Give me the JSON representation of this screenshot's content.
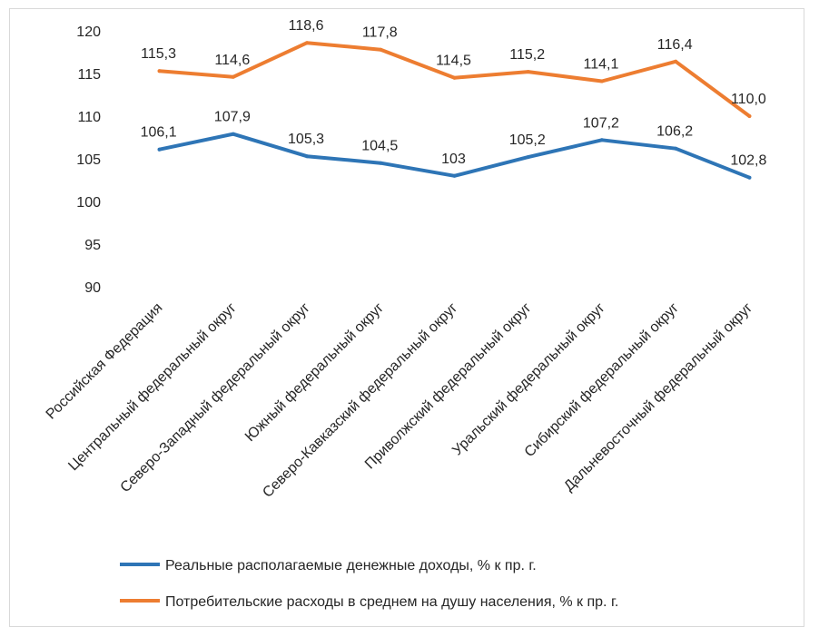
{
  "chart_data": {
    "type": "line",
    "title": "",
    "xlabel": "",
    "ylabel": "",
    "ylim": [
      90,
      120
    ],
    "yticks": [
      90,
      95,
      100,
      105,
      110,
      115,
      120
    ],
    "grid": "none",
    "legend_position": "bottom",
    "categories": [
      "Российская Федерация",
      "Центральный федеральный округ",
      "Северо-Западный федеральный округ",
      "Южный федеральный округ",
      "Северо-Кавказский федеральный округ",
      "Приволжский федеральный округ",
      "Уральский федеральный округ",
      "Сибирский федеральный округ",
      "Дальневосточный федеральный округ"
    ],
    "series": [
      {
        "name": "Реальные располагаемые денежные доходы, % к пр. г.",
        "color": "#2e75b6",
        "values": [
          106.1,
          107.9,
          105.3,
          104.5,
          103,
          105.2,
          107.2,
          106.2,
          102.8
        ],
        "labels": [
          "106,1",
          "107,9",
          "105,3",
          "104,5",
          "103",
          "105,2",
          "107,2",
          "106,2",
          "102,8"
        ]
      },
      {
        "name": "Потребительские расходы в среднем на душу населения, % к пр. г.",
        "color": "#ed7d31",
        "values": [
          115.3,
          114.6,
          118.6,
          117.8,
          114.5,
          115.2,
          114.1,
          116.4,
          110.0
        ],
        "labels": [
          "115,3",
          "114,6",
          "118,6",
          "117,8",
          "114,5",
          "115,2",
          "114,1",
          "116,4",
          "110,0"
        ]
      }
    ]
  }
}
